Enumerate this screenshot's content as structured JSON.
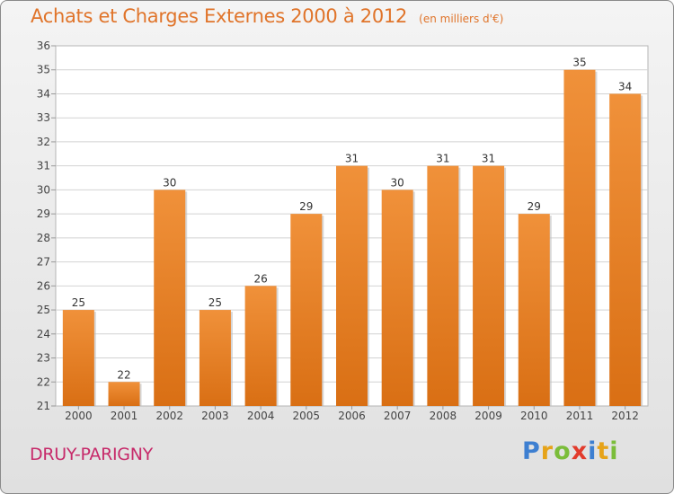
{
  "title": "Achats et Charges Externes 2000 à 2012",
  "subtitle": "(en milliers d'€)",
  "city": "DRUY-PARIGNY",
  "logo": {
    "letters": [
      "P",
      "r",
      "o",
      "x",
      "i",
      "t",
      "i"
    ],
    "colors": [
      "#3d7fd1",
      "#e6a319",
      "#7bbd3a",
      "#e23b2c",
      "#3d7fd1",
      "#e6a319",
      "#7bbd3a"
    ]
  },
  "colors": {
    "bar": "#f0913a",
    "bar_dark": "#d96f14",
    "accent": "#e0742a",
    "city": "#c72a6a"
  },
  "chart_data": {
    "type": "bar",
    "title": "Achats et Charges Externes 2000 à 2012",
    "subtitle": "(en milliers d'€)",
    "categories": [
      "2000",
      "2001",
      "2002",
      "2003",
      "2004",
      "2005",
      "2006",
      "2007",
      "2008",
      "2009",
      "2010",
      "2011",
      "2012"
    ],
    "values": [
      25,
      22,
      30,
      25,
      26,
      29,
      31,
      30,
      31,
      31,
      29,
      35,
      34
    ],
    "ylim": [
      21,
      36
    ],
    "yticks": [
      21,
      22,
      23,
      24,
      25,
      26,
      27,
      28,
      29,
      30,
      31,
      32,
      33,
      34,
      35,
      36
    ],
    "grid": true,
    "xlabel": "",
    "ylabel": ""
  }
}
